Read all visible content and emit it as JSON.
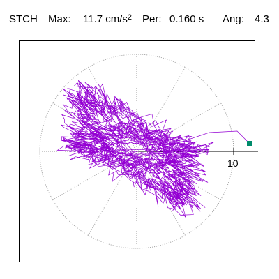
{
  "header": {
    "station": "STCH",
    "max_label": "Max:",
    "max_value": "11.7 cm/s",
    "max_exp": "2",
    "per_label": "Per:",
    "per_value": "0.160 s",
    "ang_label": "Ang:",
    "ang_value": "4.3"
  },
  "plot": {
    "scale_label": "10",
    "trace_color": "#9400d3",
    "marker_color": "#008b6b",
    "ring_color": "#999999"
  }
}
